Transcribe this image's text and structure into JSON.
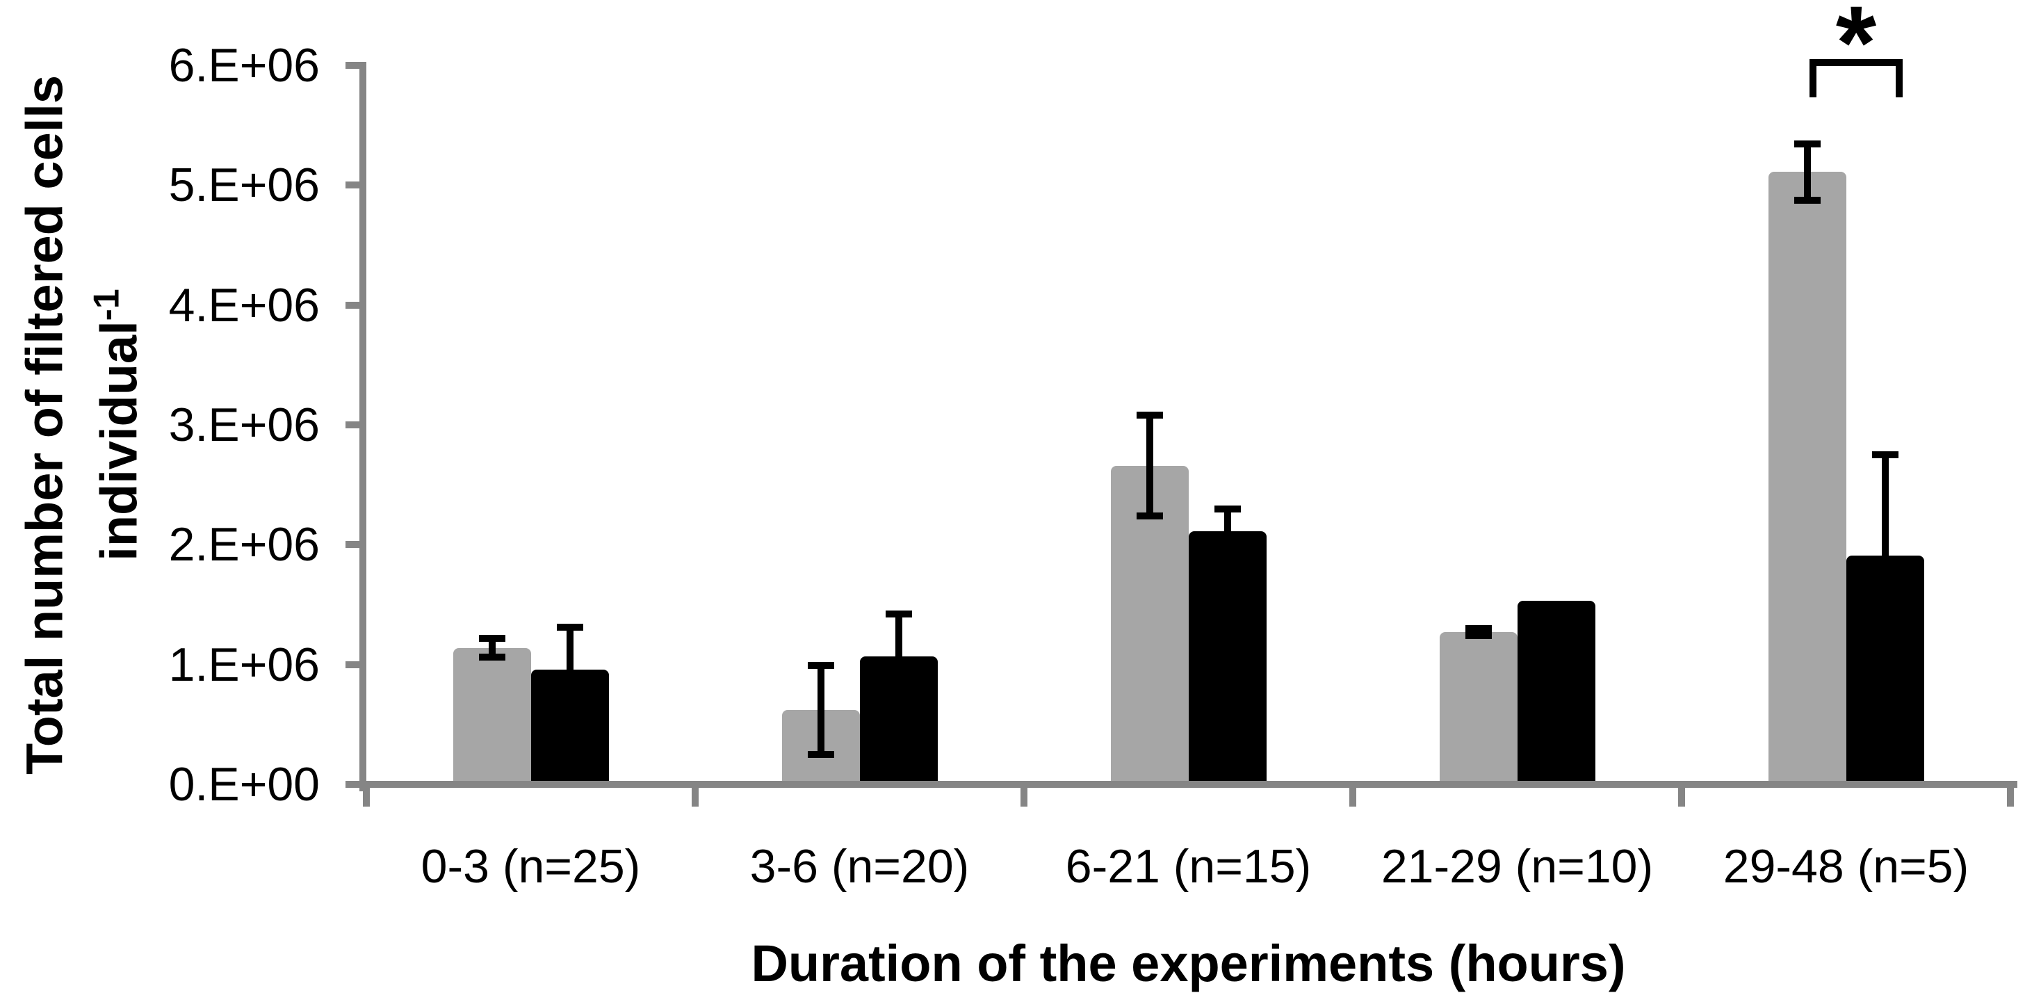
{
  "chart_data": {
    "type": "bar",
    "title": "",
    "xlabel": "Duration of the experiments (hours)",
    "ylabel_line1": "Total number of filtered cells",
    "ylabel_line2_base": "individual",
    "ylabel_line2_sup": "-1",
    "categories": [
      "0-3 (n=25)",
      "3-6 (n=20)",
      "6-21 (n=15)",
      "21-29 (n=10)",
      "29-48 (n=5)"
    ],
    "ytick_labels": [
      "0.E+00",
      "1.E+06",
      "2.E+06",
      "3.E+06",
      "4.E+06",
      "5.E+06",
      "6.E+06"
    ],
    "ylim": [
      0,
      6000000
    ],
    "grid": "off",
    "legend": "none",
    "series": [
      {
        "name": "gray-bars",
        "color": "#a6a6a6",
        "values": [
          1140000,
          620000,
          2660000,
          1270000,
          5110000
        ],
        "errors": [
          80000,
          370000,
          420000,
          30000,
          235000
        ],
        "error_style": "both"
      },
      {
        "name": "black-bars",
        "color": "#000000",
        "values": [
          960000,
          1070000,
          2110000,
          1530000,
          1910000
        ],
        "errors": [
          350000,
          350000,
          190000,
          0,
          840000
        ],
        "error_style": "up"
      }
    ],
    "significance": {
      "label": "*",
      "category": "29-48 (n=5)",
      "between": [
        "gray-bars",
        "black-bars"
      ]
    }
  }
}
